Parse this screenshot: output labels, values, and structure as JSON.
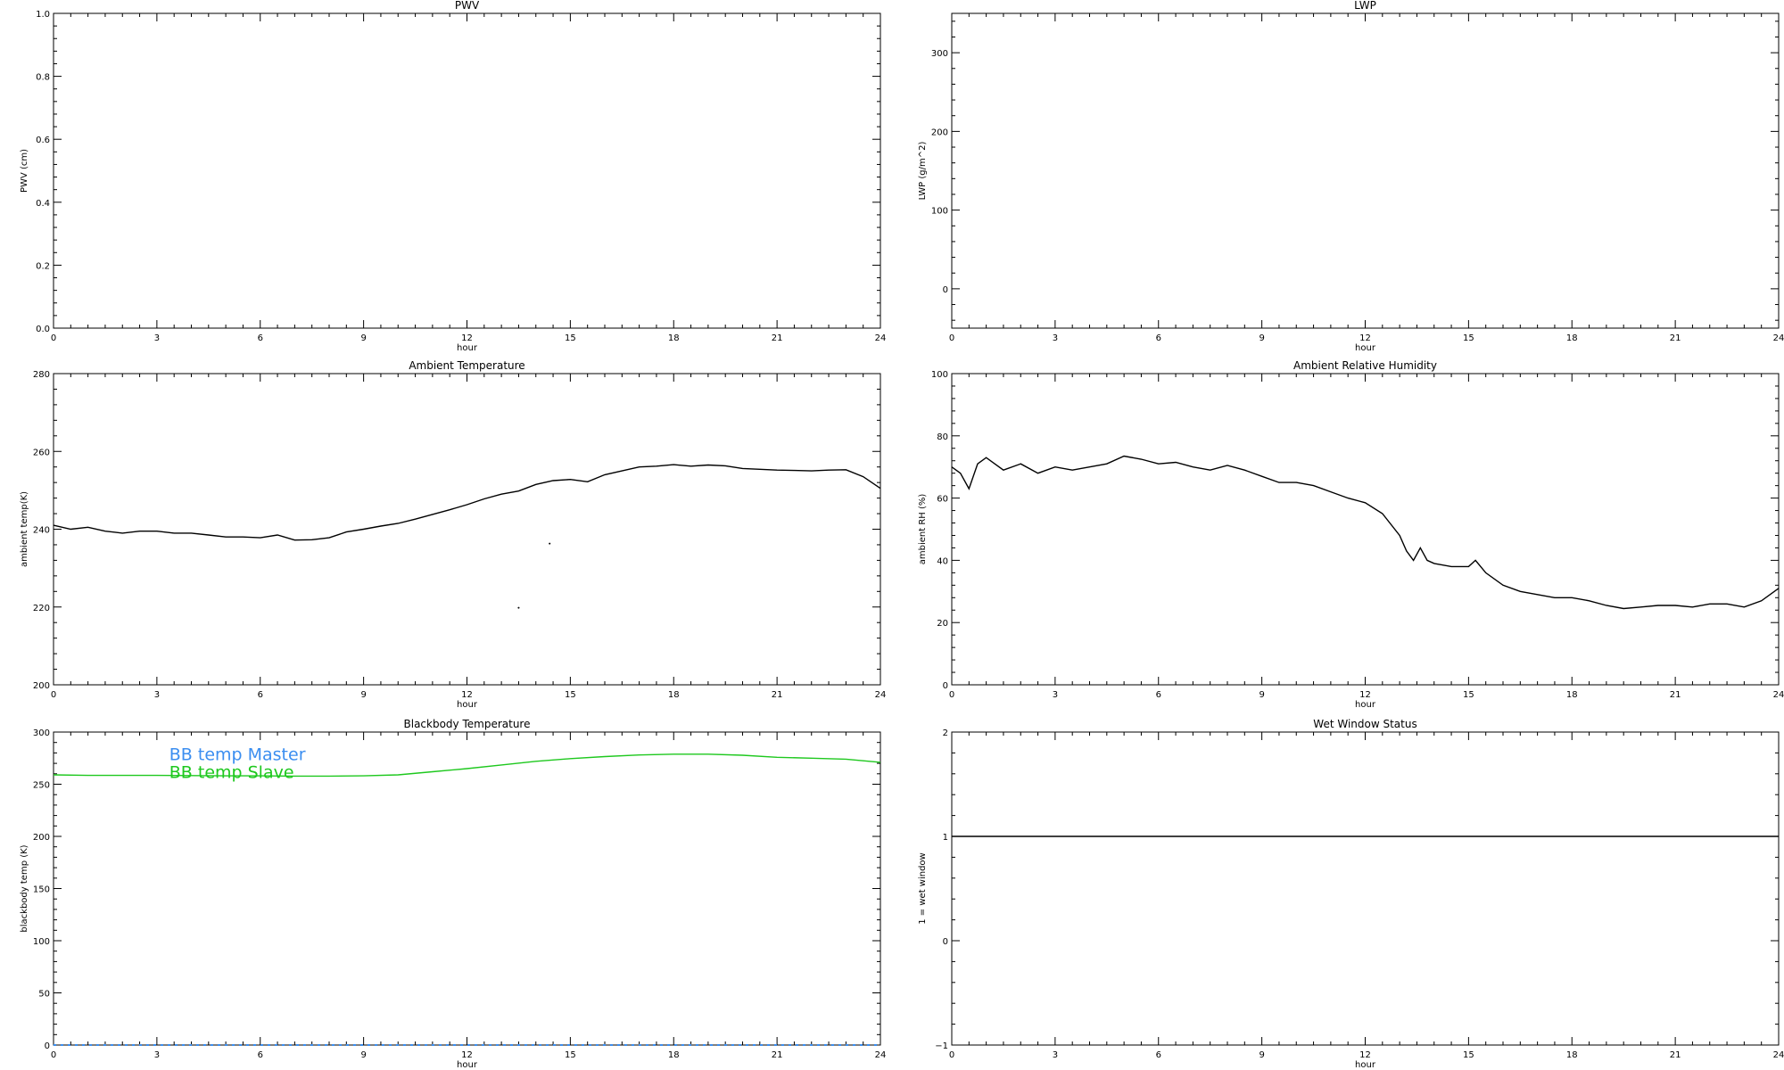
{
  "chart_data": [
    {
      "id": "pwv",
      "type": "line",
      "title": "PWV",
      "xlabel": "hour",
      "ylabel": "PWV (cm)",
      "xlim": [
        0,
        24
      ],
      "ylim": [
        0,
        1
      ],
      "xticks": [
        "0",
        "3",
        "6",
        "9",
        "12",
        "15",
        "18",
        "21",
        "24"
      ],
      "yticks": [
        "0.0",
        "0.2",
        "0.4",
        "0.6",
        "0.8",
        "1.0"
      ],
      "series": []
    },
    {
      "id": "lwp",
      "type": "line",
      "title": "LWP",
      "xlabel": "hour",
      "ylabel": "LWP (g/m^2)",
      "xlim": [
        0,
        24
      ],
      "ylim": [
        -50,
        350
      ],
      "xticks": [
        "0",
        "3",
        "6",
        "9",
        "12",
        "15",
        "18",
        "21",
        "24"
      ],
      "yticks": [
        "0",
        "100",
        "200",
        "300"
      ],
      "series": []
    },
    {
      "id": "ambient-temp",
      "type": "line",
      "title": "Ambient Temperature",
      "xlabel": "hour",
      "ylabel": "ambient temp(K)",
      "xlim": [
        0,
        24
      ],
      "ylim": [
        200,
        280
      ],
      "xticks": [
        "0",
        "3",
        "6",
        "9",
        "12",
        "15",
        "18",
        "21",
        "24"
      ],
      "yticks": [
        "200",
        "220",
        "240",
        "260",
        "280"
      ],
      "series": [
        {
          "color": "#000000",
          "x": [
            0,
            0.5,
            1,
            1.5,
            2,
            2.5,
            3,
            3.5,
            4,
            4.5,
            5,
            5.5,
            6,
            6.5,
            7,
            7.5,
            8,
            8.5,
            9,
            9.5,
            10,
            10.5,
            11,
            11.5,
            12,
            12.5,
            13,
            13.5,
            14,
            14.5,
            15,
            15.5,
            16,
            16.5,
            17,
            17.5,
            18,
            18.5,
            19,
            19.5,
            20,
            20.5,
            21,
            21.5,
            22,
            22.5,
            23,
            23.5,
            24
          ],
          "values": [
            241,
            240,
            240.5,
            239.5,
            239,
            239.5,
            239.5,
            239,
            239,
            238.5,
            238,
            238,
            237.8,
            238.5,
            237.2,
            237.3,
            237.8,
            239.3,
            240,
            240.8,
            241.5,
            242.6,
            243.8,
            245,
            246.3,
            247.8,
            249,
            249.8,
            251.5,
            252.5,
            252.8,
            252.2,
            254,
            255,
            256,
            256.2,
            256.6,
            256.2,
            256.5,
            256.3,
            255.6,
            255.4,
            255.2,
            255.1,
            255,
            255.2,
            255.3,
            253.5,
            250.5
          ]
        }
      ],
      "outliers": [
        {
          "x": 13.5,
          "y": 219.8
        },
        {
          "x": 14.4,
          "y": 236.3
        }
      ]
    },
    {
      "id": "ambient-rh",
      "type": "line",
      "title": "Ambient Relative Humidity",
      "xlabel": "hour",
      "ylabel": "ambient RH (%)",
      "xlim": [
        0,
        24
      ],
      "ylim": [
        0,
        100
      ],
      "xticks": [
        "0",
        "3",
        "6",
        "9",
        "12",
        "15",
        "18",
        "21",
        "24"
      ],
      "yticks": [
        "0",
        "20",
        "40",
        "60",
        "80",
        "100"
      ],
      "series": [
        {
          "color": "#000000",
          "x": [
            0,
            0.25,
            0.5,
            0.75,
            1,
            1.5,
            2,
            2.5,
            3,
            3.5,
            4,
            4.5,
            5,
            5.5,
            6,
            6.5,
            7,
            7.5,
            8,
            8.5,
            9,
            9.5,
            10,
            10.5,
            11,
            11.5,
            12,
            12.5,
            13,
            13.2,
            13.4,
            13.6,
            13.8,
            14,
            14.5,
            15,
            15.2,
            15.5,
            16,
            16.5,
            17,
            17.5,
            18,
            18.5,
            19,
            19.5,
            20,
            20.5,
            21,
            21.5,
            22,
            22.5,
            23,
            23.5,
            24
          ],
          "values": [
            70,
            68,
            63,
            71,
            73,
            69,
            71,
            68,
            70,
            69,
            70,
            71,
            73.5,
            72.5,
            71,
            71.5,
            70,
            69,
            70.5,
            69,
            67,
            65,
            65,
            64,
            62,
            60,
            58.5,
            55,
            48,
            43,
            40,
            44,
            40,
            39,
            38,
            38,
            40,
            36,
            32,
            30,
            29,
            28,
            28,
            27,
            25.5,
            24.5,
            25,
            25.5,
            25.5,
            25,
            26,
            26,
            25,
            27,
            31
          ]
        }
      ]
    },
    {
      "id": "blackbody-temp",
      "type": "line",
      "title": "Blackbody Temperature",
      "xlabel": "hour",
      "ylabel": "blackbody temp (K)",
      "xlim": [
        0,
        24
      ],
      "ylim": [
        0,
        300
      ],
      "xticks": [
        "0",
        "3",
        "6",
        "9",
        "12",
        "15",
        "18",
        "21",
        "24"
      ],
      "yticks": [
        "0",
        "50",
        "100",
        "150",
        "200",
        "250",
        "300"
      ],
      "legend": [
        "BB temp Master",
        "BB temp Slave"
      ],
      "series": [
        {
          "name": "BB temp Master",
          "color": "#3b8ef0",
          "dashed": true,
          "x": [
            0,
            24
          ],
          "values": [
            0,
            0
          ]
        },
        {
          "name": "BB temp Slave",
          "color": "#1ec81e",
          "x": [
            0,
            1,
            2,
            3,
            4,
            5,
            6,
            7,
            8,
            9,
            10,
            11,
            12,
            13,
            14,
            15,
            16,
            17,
            18,
            19,
            20,
            21,
            22,
            23,
            24
          ],
          "values": [
            259,
            258.5,
            258.5,
            258.5,
            258.3,
            258,
            258,
            257.8,
            257.8,
            258,
            259,
            262,
            265,
            268.5,
            272,
            274.5,
            276.5,
            278,
            278.8,
            278.8,
            277.8,
            275.8,
            275,
            274,
            271
          ]
        }
      ]
    },
    {
      "id": "wet-window",
      "type": "line",
      "title": "Wet Window Status",
      "xlabel": "hour",
      "ylabel": "1 = wet window",
      "xlim": [
        0,
        24
      ],
      "ylim": [
        -1,
        2
      ],
      "xticks": [
        "0",
        "3",
        "6",
        "9",
        "12",
        "15",
        "18",
        "21",
        "24"
      ],
      "yticks": [
        "−1",
        "0",
        "1",
        "2"
      ],
      "series": [
        {
          "color": "#000000",
          "x": [
            0,
            24
          ],
          "values": [
            1,
            1
          ]
        }
      ]
    }
  ]
}
